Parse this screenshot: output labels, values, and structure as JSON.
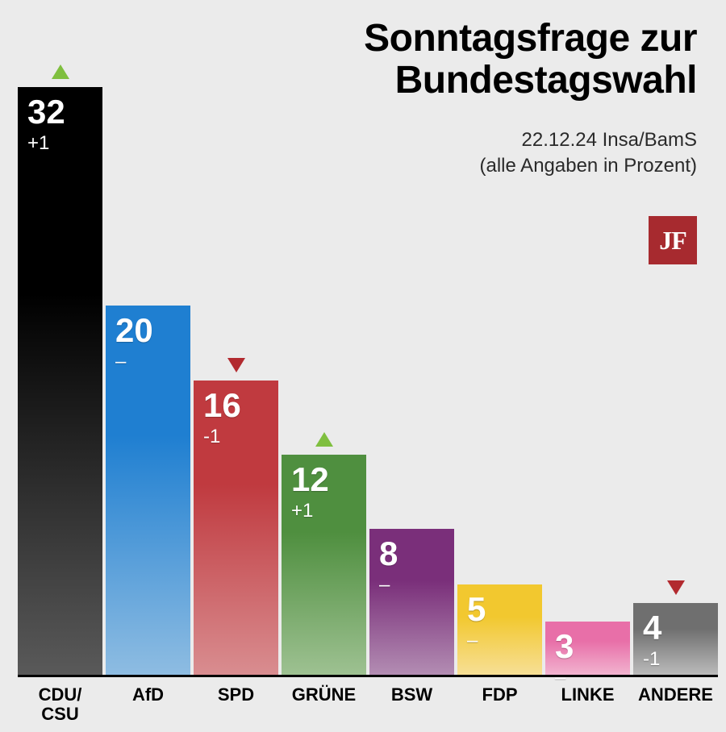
{
  "title_line1": "Sonntagsfrage zur",
  "title_line2": "Bundestagswahl",
  "title_fontsize": 48,
  "subtitle_line1": "22.12.24 Insa/BamS",
  "subtitle_line2": "(alle Angaben in Prozent)",
  "subtitle_fontsize": 24,
  "logo": {
    "text": "JF",
    "bg": "#a72a2f",
    "fontsize": 32
  },
  "background_color": "#ebebeb",
  "chart": {
    "type": "bar",
    "max_value": 33,
    "baseline_color": "#000000",
    "value_fontsize": 42,
    "delta_fontsize": 24,
    "label_fontsize": 22,
    "trend_up_color": "#7fbf3f",
    "trend_down_color": "#b22a2f",
    "bars": [
      {
        "label": "CDU/\nCSU",
        "value": 32,
        "delta": "+1",
        "trend": "up",
        "color_top": "#000000",
        "color_bottom": "#5a5a5a"
      },
      {
        "label": "AfD",
        "value": 20,
        "delta": "–",
        "trend": "none",
        "color_top": "#1f7fd1",
        "color_bottom": "#8fbde2"
      },
      {
        "label": "SPD",
        "value": 16,
        "delta": "-1",
        "trend": "down",
        "color_top": "#c03a3f",
        "color_bottom": "#d98e91"
      },
      {
        "label": "GRÜNE",
        "value": 12,
        "delta": "+1",
        "trend": "up",
        "color_top": "#4f8f3f",
        "color_bottom": "#9fc293"
      },
      {
        "label": "BSW",
        "value": 8,
        "delta": "–",
        "trend": "none",
        "color_top": "#7a2f7a",
        "color_bottom": "#b48fb4"
      },
      {
        "label": "FDP",
        "value": 5,
        "delta": "–",
        "trend": "none",
        "color_top": "#f2c82f",
        "color_bottom": "#f7e09a"
      },
      {
        "label": "LINKE",
        "value": 3,
        "delta": "–",
        "trend": "none",
        "color_top": "#e86fa8",
        "color_bottom": "#f2b8d2"
      },
      {
        "label": "ANDERE",
        "value": 4,
        "delta": "-1",
        "trend": "down",
        "color_top": "#6f6f6f",
        "color_bottom": "#bfbfbf"
      }
    ]
  }
}
